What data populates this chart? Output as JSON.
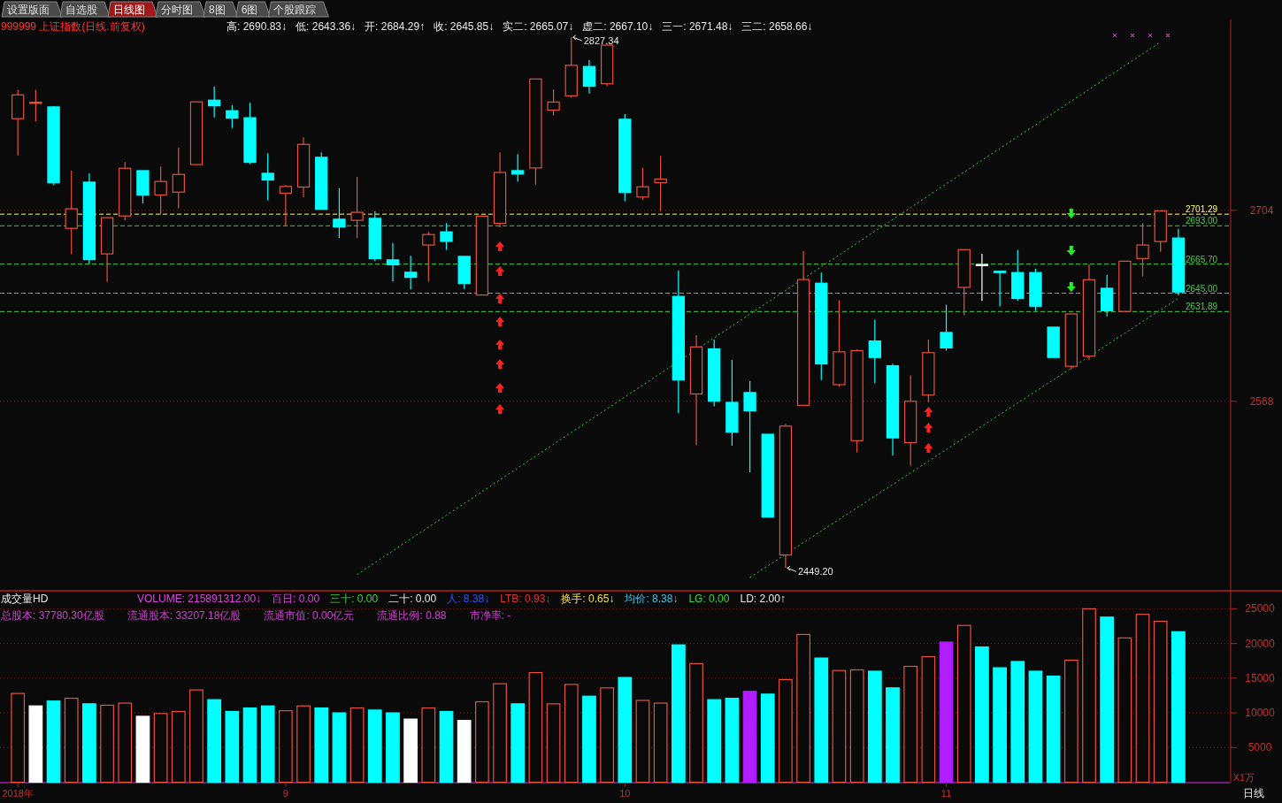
{
  "chart_data": [
    {
      "type": "candlestick",
      "title": "999999 上证指数(日线.前复权)",
      "annotations": [
        "设置版面",
        "自选股",
        "日线图",
        "分时图",
        "8图",
        "6图",
        "个股跟踪",
        "高: 2690.83↓",
        "低: 2643.36↓",
        "开: 2684.29↑",
        "收: 2645.85↓",
        "实二: 2665.07↓",
        "虚二: 2667.10↓",
        "三一: 2671.48↓",
        "三二: 2658.66↓",
        "2827.34",
        "2449.20"
      ],
      "categories": [
        null,
        null,
        null,
        null,
        null,
        null,
        null,
        null,
        null,
        null,
        null,
        null,
        null,
        null,
        null,
        null,
        null,
        null,
        null,
        null,
        null,
        null,
        null,
        null,
        null,
        null,
        null,
        null,
        null,
        null,
        null,
        null,
        null,
        null,
        null,
        null,
        null,
        null,
        null,
        null,
        null,
        null,
        null,
        null,
        null,
        null,
        null,
        null,
        null,
        null,
        null,
        null,
        null,
        null,
        null,
        null,
        null,
        null,
        null,
        null,
        null,
        null,
        null,
        null,
        null,
        null
      ],
      "ohlc": [
        [
          2769.3,
          2789.9,
          2743.2,
          2786.3
        ],
        [
          2781.0,
          2789.9,
          2767.4,
          2781.0
        ],
        [
          2777.7,
          2778.3,
          2722.1,
          2723.7
        ],
        [
          2691.2,
          2732.3,
          2672.7,
          2705.1
        ],
        [
          2724.1,
          2730.4,
          2665.8,
          2668.9
        ],
        [
          2673.0,
          2698.8,
          2653.0,
          2698.8
        ],
        [
          2700.0,
          2738.4,
          2696.9,
          2734.0
        ],
        [
          2732.3,
          2732.3,
          2709.0,
          2714.9
        ],
        [
          2714.9,
          2735.3,
          2701.0,
          2724.6
        ],
        [
          2717.0,
          2748.7,
          2705.4,
          2729.6
        ],
        [
          2736.6,
          2781.3,
          2736.6,
          2781.3
        ],
        [
          2782.5,
          2792.1,
          2770.3,
          2778.5
        ],
        [
          2775.0,
          2778.9,
          2762.7,
          2769.7
        ],
        [
          2770.0,
          2780.6,
          2737.0,
          2738.2
        ],
        [
          2730.4,
          2744.7,
          2711.1,
          2725.6
        ],
        [
          2716.2,
          2722.1,
          2692.9,
          2721.0
        ],
        [
          2720.6,
          2756.1,
          2713.3,
          2751.0
        ],
        [
          2741.8,
          2745.4,
          2704.8,
          2704.8
        ],
        [
          2697.7,
          2719.9,
          2684.3,
          2692.2
        ],
        [
          2696.9,
          2727.9,
          2684.3,
          2702.6
        ],
        [
          2698.3,
          2703.4,
          2667.9,
          2669.6
        ],
        [
          2668.7,
          2680.7,
          2653.4,
          2665.2
        ],
        [
          2659.9,
          2671.7,
          2647.8,
          2656.3
        ],
        [
          2679.3,
          2688.7,
          2653.4,
          2686.8
        ],
        [
          2688.7,
          2694.9,
          2675.9,
          2681.9
        ],
        [
          2671.2,
          2671.2,
          2648.0,
          2651.9
        ],
        [
          2643.7,
          2699.9,
          2643.7,
          2699.9
        ],
        [
          2694.7,
          2745.4,
          2692.0,
          2731.0
        ],
        [
          2732.3,
          2744.0,
          2724.5,
          2729.9
        ],
        [
          2734.2,
          2797.6,
          2722.4,
          2797.6
        ],
        [
          2775.4,
          2790.1,
          2771.5,
          2781.2
        ],
        [
          2785.6,
          2827.34,
          2784.3,
          2807.3
        ],
        [
          2806.5,
          2811.2,
          2787.2,
          2792.4
        ],
        [
          2794.2,
          2821.7,
          2792.4,
          2821.7
        ],
        [
          2768.9,
          2772.6,
          2710.6,
          2716.7
        ],
        [
          2713.5,
          2734.4,
          2711.4,
          2720.8
        ],
        [
          2723.7,
          2742.8,
          2703.6,
          2726.3
        ],
        [
          2642.7,
          2661.0,
          2559.6,
          2583.1
        ],
        [
          2573.2,
          2615.1,
          2536.7,
          2606.7
        ],
        [
          2605.3,
          2611.9,
          2564.4,
          2568.0
        ],
        [
          2567.2,
          2597.5,
          2536.3,
          2546.0
        ],
        [
          2574.2,
          2582.4,
          2517.3,
          2561.2
        ],
        [
          2544.5,
          2544.5,
          2485.5,
          2485.5
        ],
        [
          2458.5,
          2551.8,
          2449.2,
          2550.3
        ],
        [
          2565.1,
          2675.1,
          2565.1,
          2654.7
        ],
        [
          2652.1,
          2659.7,
          2583.1,
          2594.6
        ],
        [
          2579.8,
          2640.0,
          2578.4,
          2603.2
        ],
        [
          2539.9,
          2604.9,
          2531.4,
          2604.1
        ],
        [
          2610.9,
          2626.1,
          2581.1,
          2599.2
        ],
        [
          2593.3,
          2594.7,
          2529.4,
          2541.9
        ],
        [
          2538.5,
          2586.5,
          2522.1,
          2568.0
        ],
        [
          2572.4,
          2612.0,
          2567.3,
          2602.6
        ],
        [
          2617.0,
          2636.8,
          2604.0,
          2606.0
        ],
        [
          2649.1,
          2676.0,
          2629.3,
          2676.0
        ],
        [
          2665.4,
          2673.1,
          2639.5,
          2665.4
        ],
        [
          2660.6,
          2660.6,
          2635.5,
          2659.7
        ],
        [
          2659.7,
          2675.9,
          2639.5,
          2641.2
        ],
        [
          2659.7,
          2662.3,
          2632.5,
          2635.7
        ],
        [
          2620.8,
          2620.8,
          2599.2,
          2599.2
        ],
        [
          2592.9,
          2630.2,
          2590.6,
          2630.2
        ],
        [
          2600.1,
          2665.7,
          2597.6,
          2654.6
        ],
        [
          2648.5,
          2658.0,
          2628.4,
          2632.5
        ],
        [
          2632.0,
          2667.8,
          2631.89,
          2667.8
        ],
        [
          2669.7,
          2694.9,
          2657.0,
          2679.3
        ],
        [
          2681.8,
          2703.7,
          2674.5,
          2703.7
        ],
        [
          2684.29,
          2690.83,
          2643.36,
          2645.85
        ]
      ],
      "colors": [
        "#e8503c",
        "#e8503c",
        "#00ffff",
        "#e8503c",
        "#00ffff",
        "#e8503c",
        "#e8503c",
        "#00ffff",
        "#e8503c",
        "#e8503c",
        "#e8503c",
        "#00ffff",
        "#00ffff",
        "#00ffff",
        "#00ffff",
        "#e8503c",
        "#e8503c",
        "#00ffff",
        "#00ffff",
        "#e8503c",
        "#00ffff",
        "#00ffff",
        "#00ffff",
        "#e8503c",
        "#00ffff",
        "#00ffff",
        "#e8503c",
        "#e8503c",
        "#00ffff",
        "#e8503c",
        "#e8503c",
        "#e8503c",
        "#00ffff",
        "#e8503c",
        "#00ffff",
        "#e8503c",
        "#e8503c",
        "#00ffff",
        "#e8503c",
        "#00ffff",
        "#00ffff",
        "#00ffff",
        "#00ffff",
        "#e8503c",
        "#e8503c",
        "#00ffff",
        "#e8503c",
        "#e8503c",
        "#00ffff",
        "#00ffff",
        "#e8503c",
        "#e8503c",
        "#00ffff",
        "#e8503c",
        "#ffffff",
        "#00ffff",
        "#00ffff",
        "#00ffff",
        "#00ffff",
        "#e8503c",
        "#e8503c",
        "#00ffff",
        "#e8503c",
        "#e8503c",
        "#e8503c",
        "#00ffff"
      ],
      "series": [
        {
          "type": "line",
          "color": "#33cc33",
          "line_style": "dotted",
          "values": [
            null,
            null,
            null,
            null,
            null,
            null,
            null,
            null,
            null,
            null,
            null,
            null,
            null,
            null,
            null,
            null,
            null,
            null,
            null,
            2444.6,
            2453.0,
            2461.5,
            2469.9,
            2478.3,
            2486.8,
            2495.2,
            2503.6,
            2512.0,
            2520.5,
            2528.9,
            2537.3,
            2545.8,
            2554.2,
            2562.6,
            2571.1,
            2579.5,
            2587.9,
            null,
            null,
            2613.2,
            2621.6,
            2630.1,
            2638.5,
            2646.9,
            2655.4,
            2663.8,
            2672.2,
            2680.6,
            2689.1,
            2697.5,
            2705.9,
            2714.4,
            2722.8,
            2731.2,
            2739.7,
            2748.1,
            2756.5,
            2764.9,
            2773.4,
            2781.8,
            2790.2,
            2798.7,
            2807.1,
            2815.5,
            2824.0,
            null
          ]
        },
        {
          "type": "line",
          "color": "#33cc33",
          "line_style": "dotted",
          "values": [
            null,
            null,
            null,
            null,
            null,
            null,
            null,
            null,
            null,
            null,
            null,
            null,
            null,
            null,
            null,
            null,
            null,
            null,
            null,
            null,
            null,
            null,
            null,
            null,
            null,
            null,
            null,
            null,
            null,
            null,
            null,
            null,
            null,
            null,
            null,
            null,
            null,
            null,
            null,
            null,
            null,
            2442.4,
            2450.7,
            2459.0,
            2467.3,
            2475.6,
            2483.9,
            2492.1,
            2500.4,
            2508.7,
            2517.0,
            2525.3,
            2533.6,
            2541.9,
            2550.2,
            2558.5,
            2566.8,
            2575.0,
            2583.3,
            2591.6,
            2599.9,
            2608.2,
            2616.5,
            2624.8,
            2633.1,
            2641.4
          ]
        }
      ],
      "ref_lines": [
        {
          "axis": "y",
          "value": 2701.29,
          "label": "2701.29",
          "color": "#ffff66",
          "line_style": "dashed"
        },
        {
          "axis": "y",
          "value": 2693.0,
          "label": "2693.00",
          "color": "#44cc44",
          "line_style": "dashed"
        },
        {
          "axis": "y",
          "value": 2665.7,
          "label": "2665.70",
          "color": "#44cc44",
          "line_style": "dashed"
        },
        {
          "axis": "y",
          "value": 2645.0,
          "label": "2645.00",
          "color": "#44cc44",
          "line_style": "dashed"
        },
        {
          "axis": "y",
          "value": 2631.89,
          "label": "2631.89",
          "color": "#44cc44",
          "line_style": "dashed"
        }
      ],
      "ylim": [
        2433,
        2840
      ],
      "yticks": [
        2568,
        2704
      ],
      "grid": "y",
      "tick_labels": "y"
    },
    {
      "type": "bar",
      "title": "成交量HD",
      "ylabel": "X1万",
      "annotations": [
        "VOLUME: 215891312.00↓",
        "百日: 0.00",
        "三十: 0.00",
        "二十: 0.00",
        "人: 8.38↓",
        "LTB: 0.93↓",
        "换手: 0.65↓",
        "均价: 8.38↓",
        "LG: 0.00",
        "LD: 2.00↑",
        "总股本: 37780.30亿股",
        "流通股本: 33207.18亿股",
        "流通市值: 0.00亿元",
        "流通比例: 0.88",
        "市净率: -",
        "日线"
      ],
      "categories": [
        "2018年",
        null,
        null,
        null,
        null,
        null,
        null,
        null,
        null,
        null,
        null,
        null,
        null,
        null,
        null,
        "9",
        null,
        null,
        null,
        null,
        null,
        null,
        null,
        null,
        null,
        null,
        null,
        null,
        null,
        null,
        null,
        null,
        null,
        null,
        "10",
        null,
        null,
        null,
        null,
        null,
        null,
        null,
        null,
        null,
        null,
        null,
        null,
        null,
        null,
        null,
        null,
        null,
        "11",
        null,
        null,
        null,
        null,
        null,
        null,
        null,
        null,
        null,
        null,
        null,
        null,
        null
      ],
      "values": [
        12800,
        11000,
        11700,
        12100,
        11300,
        11100,
        11400,
        9500,
        9900,
        10200,
        13300,
        11900,
        10200,
        10700,
        11000,
        10300,
        11000,
        10700,
        10000,
        10700,
        10400,
        10000,
        9100,
        10700,
        10200,
        8900,
        11600,
        14200,
        11300,
        15800,
        11300,
        14100,
        12400,
        13600,
        15100,
        11800,
        11400,
        19800,
        17100,
        11900,
        12100,
        13100,
        12700,
        14800,
        21300,
        17900,
        16100,
        16200,
        16000,
        13600,
        16700,
        18100,
        20200,
        22600,
        19500,
        16500,
        17400,
        16000,
        15300,
        17600,
        25000,
        23800,
        20800,
        24200,
        23200,
        21700
      ],
      "colors": [
        "#e8503c",
        "#ffffff",
        "#00ffff",
        "#e8503c",
        "#00ffff",
        "#e8503c",
        "#e8503c",
        "#ffffff",
        "#e8503c",
        "#e8503c",
        "#e8503c",
        "#00ffff",
        "#00ffff",
        "#00ffff",
        "#00ffff",
        "#e8503c",
        "#e8503c",
        "#00ffff",
        "#00ffff",
        "#e8503c",
        "#00ffff",
        "#00ffff",
        "#ffffff",
        "#e8503c",
        "#00ffff",
        "#ffffff",
        "#e8503c",
        "#e8503c",
        "#00ffff",
        "#e8503c",
        "#e8503c",
        "#e8503c",
        "#00ffff",
        "#e8503c",
        "#00ffff",
        "#e8503c",
        "#e8503c",
        "#00ffff",
        "#e8503c",
        "#00ffff",
        "#00ffff",
        "#b01eff",
        "#00ffff",
        "#e8503c",
        "#e8503c",
        "#00ffff",
        "#e8503c",
        "#e8503c",
        "#00ffff",
        "#00ffff",
        "#e8503c",
        "#e8503c",
        "#b01eff",
        "#e8503c",
        "#00ffff",
        "#00ffff",
        "#00ffff",
        "#00ffff",
        "#00ffff",
        "#e8503c",
        "#e8503c",
        "#00ffff",
        "#e8503c",
        "#e8503c",
        "#e8503c",
        "#00ffff"
      ],
      "ylim": [
        0,
        27600
      ],
      "yticks": [
        5000,
        10000,
        15000,
        20000,
        25000
      ],
      "grid": "y"
    }
  ]
}
